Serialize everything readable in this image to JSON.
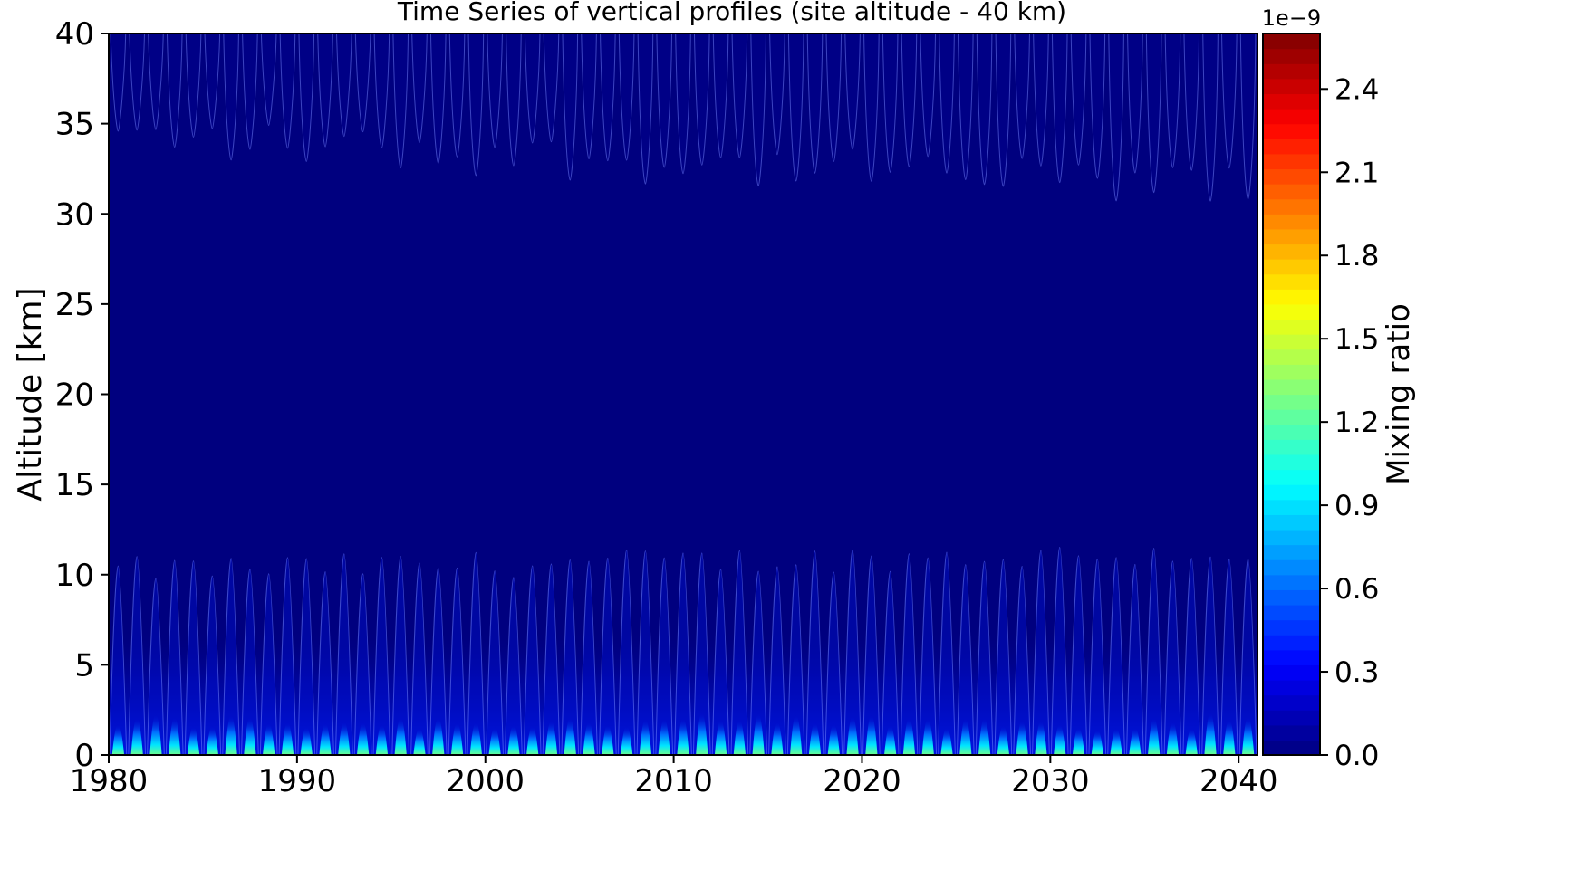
{
  "chart_data": {
    "type": "heatmap",
    "title": "Time Series of vertical profiles (site altitude - 40 km)",
    "xlabel": "",
    "ylabel": "Altitude [km]",
    "colorbar_label": "Mixing ratio",
    "colorbar_exponent": "1e−9",
    "xlim": [
      1980,
      2041
    ],
    "ylim": [
      0,
      40
    ],
    "clim": [
      0.0,
      2.6
    ],
    "x_ticks": [
      1980,
      1990,
      2000,
      2010,
      2020,
      2030,
      2040
    ],
    "x_tick_labels": [
      "1980",
      "1990",
      "2000",
      "2010",
      "2020",
      "2030",
      "2040"
    ],
    "y_ticks": [
      0,
      5,
      10,
      15,
      20,
      25,
      30,
      35,
      40
    ],
    "y_tick_labels": [
      "0",
      "5",
      "10",
      "15",
      "20",
      "25",
      "30",
      "35",
      "40"
    ],
    "colorbar_ticks": [
      0.0,
      0.3,
      0.6,
      0.9,
      1.2,
      1.5,
      1.8,
      2.1,
      2.4
    ],
    "colorbar_tick_labels": [
      "0.0",
      "0.3",
      "0.6",
      "0.9",
      "1.2",
      "1.5",
      "1.8",
      "2.1",
      "2.4"
    ],
    "colormap": "jet",
    "colormap_stops": [
      "#00007f",
      "#0000ff",
      "#007fff",
      "#00ffff",
      "#7fff7f",
      "#ffff00",
      "#ff7f00",
      "#ff0000",
      "#7f0000"
    ],
    "colorbar_levels": 48,
    "background_value": 0.0,
    "seasonal_cycle_years": 1.0,
    "surface_peak_value": 1.3,
    "upper_band_lower_edge_km": [
      33,
      30
    ],
    "lower_band_upper_edge_km": [
      11,
      12
    ],
    "grid": false
  }
}
